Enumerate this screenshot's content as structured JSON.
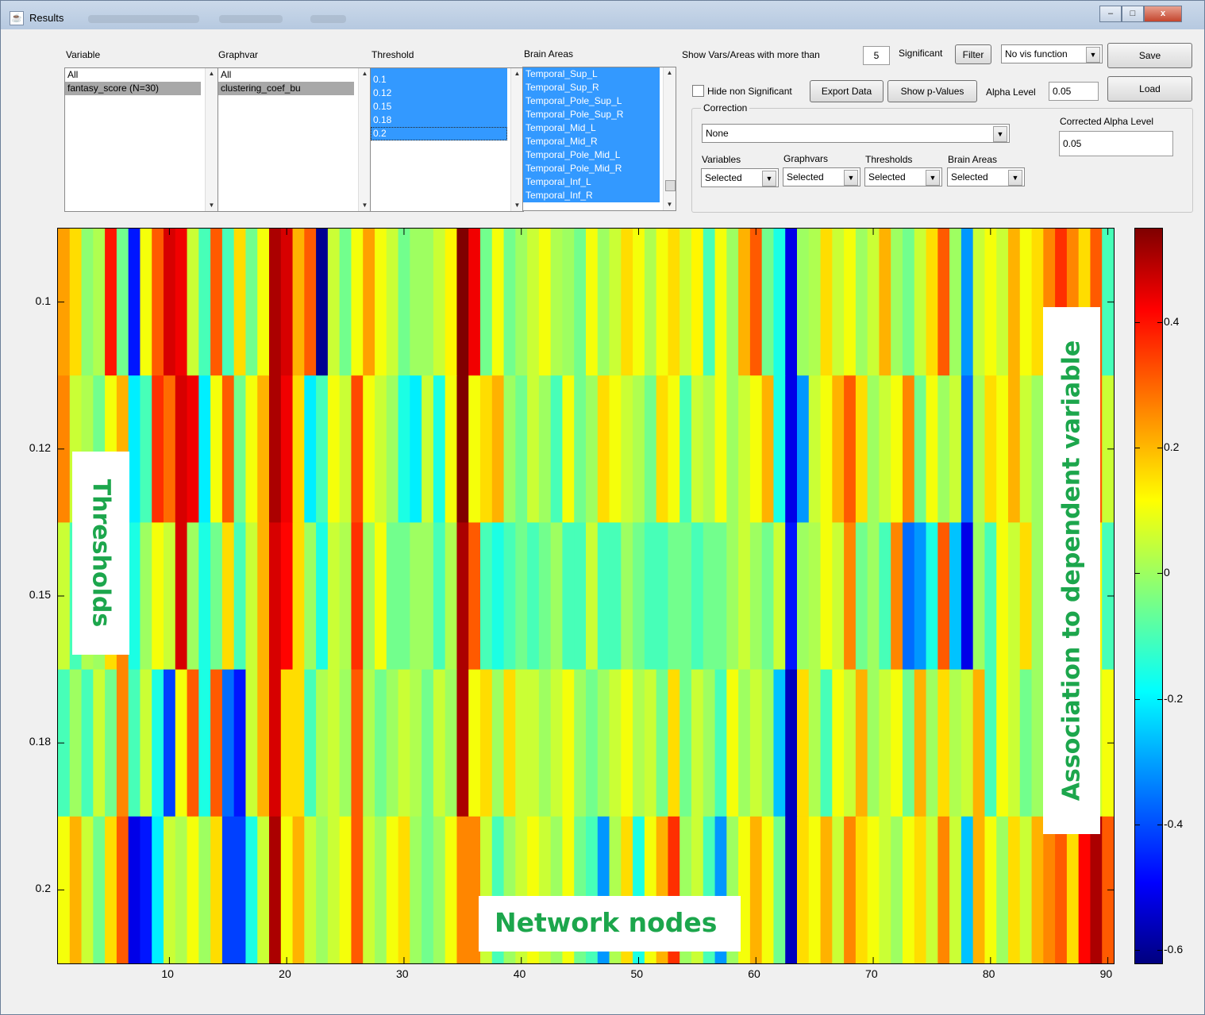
{
  "window": {
    "title": "Results",
    "controls": {
      "minimize": "–",
      "maximize": "□",
      "close": "x"
    }
  },
  "panels": {
    "variable": {
      "header": "Variable",
      "items": [
        "All",
        "fantasy_score (N=30)"
      ],
      "selected_index": 1
    },
    "graphvar": {
      "header": "Graphvar",
      "items": [
        "All",
        "clustering_coef_bu"
      ],
      "selected_index": 1
    },
    "threshold": {
      "header": "Threshold",
      "items": [
        "0.1",
        "0.12",
        "0.15",
        "0.18",
        "0.2"
      ]
    },
    "brain_areas": {
      "header": "Brain Areas",
      "items": [
        "Temporal_Sup_L",
        "Temporal_Sup_R",
        "Temporal_Pole_Sup_L",
        "Temporal_Pole_Sup_R",
        "Temporal_Mid_L",
        "Temporal_Mid_R",
        "Temporal_Pole_Mid_L",
        "Temporal_Pole_Mid_R",
        "Temporal_Inf_L",
        "Temporal_Inf_R"
      ]
    }
  },
  "controls": {
    "show_label": "Show Vars/Areas with more than",
    "show_count": "5",
    "significant_label": "Significant",
    "filter_button": "Filter",
    "vis_function": "No vis function",
    "save_button": "Save",
    "load_button": "Load",
    "hide_non_significant": "Hide non Significant",
    "hide_checked": false,
    "export_button": "Export Data",
    "pvalues_button": "Show p-Values",
    "alpha_label": "Alpha Level",
    "alpha_value": "0.05",
    "correction_label": "Correction",
    "correction_value": "None",
    "corrected_alpha_label": "Corrected Alpha Level",
    "corrected_alpha_value": "0.05",
    "sub_labels": [
      "Variables",
      "Graphvars",
      "Thresholds",
      "Brain Areas"
    ],
    "sub_values": [
      "Selected",
      "Selected",
      "Selected",
      "Selected"
    ]
  },
  "chart_data": {
    "type": "heatmap",
    "ylabel": "Thresholds",
    "xlabel": "Network nodes",
    "colorbar_label": "Association to dependent variable",
    "colormap": "jet",
    "y_ticks": [
      "0.1",
      "0.12",
      "0.15",
      "0.18",
      "0.2"
    ],
    "x_ticks": [
      10,
      20,
      30,
      40,
      50,
      60,
      70,
      80,
      90
    ],
    "x_range": [
      1,
      90
    ],
    "colorbar_ticks": [
      0.4,
      0.2,
      0,
      -0.2,
      -0.4,
      -0.6
    ],
    "colorbar_range": [
      -0.62,
      0.55
    ],
    "rows": [
      [
        0.22,
        0.15,
        -0.02,
        0.02,
        0.38,
        -0.05,
        -0.45,
        0.1,
        0.3,
        0.45,
        0.42,
        0.05,
        -0.1,
        0.3,
        -0.1,
        0.15,
        -0.05,
        0.1,
        0.5,
        0.45,
        0.2,
        0.3,
        -0.6,
        0.05,
        -0.05,
        0.1,
        0.22,
        0.1,
        0.05,
        -0.05,
        0.0,
        0.0,
        0.05,
        0.12,
        0.55,
        0.42,
        -0.05,
        0.1,
        -0.05,
        0.0,
        0.05,
        0.1,
        0.02,
        0.0,
        -0.05,
        0.1,
        0.0,
        0.05,
        0.15,
        0.1,
        0.02,
        0.1,
        0.15,
        0.05,
        0.12,
        -0.1,
        0.1,
        0.0,
        0.2,
        0.3,
        -0.05,
        -0.15,
        -0.5,
        0.0,
        0.02,
        0.15,
        0.05,
        0.1,
        0.0,
        0.05,
        0.2,
        0.0,
        -0.05,
        0.05,
        0.15,
        0.3,
        0.0,
        -0.3,
        0.05,
        0.1,
        0.05,
        0.2,
        0.1,
        0.15,
        0.25,
        0.35,
        0.25,
        0.15,
        0.3,
        -0.1
      ],
      [
        0.25,
        0.05,
        0.02,
        -0.05,
        0.1,
        0.2,
        -0.2,
        -0.1,
        0.35,
        0.28,
        0.45,
        0.42,
        -0.2,
        0.1,
        0.3,
        -0.05,
        0.1,
        0.2,
        0.5,
        0.42,
        0.15,
        -0.2,
        -0.1,
        0.1,
        0.05,
        0.32,
        0.1,
        0.05,
        0.0,
        -0.15,
        -0.2,
        0.05,
        -0.15,
        0.1,
        0.55,
        0.1,
        0.15,
        0.2,
        0.0,
        -0.05,
        0.05,
        0.0,
        -0.1,
        0.1,
        -0.05,
        0.0,
        0.15,
        0.1,
        0.05,
        0.02,
        -0.05,
        0.15,
        0.1,
        -0.1,
        0.05,
        0.02,
        0.1,
        0.0,
        0.05,
        0.1,
        0.2,
        -0.15,
        -0.5,
        -0.3,
        0.05,
        0.1,
        0.2,
        0.3,
        0.15,
        0.0,
        0.05,
        0.1,
        0.25,
        -0.05,
        0.1,
        0.0,
        0.05,
        -0.35,
        0.02,
        0.15,
        0.1,
        0.2,
        0.05,
        0.0,
        -0.3,
        0.15,
        0.0,
        0.25,
        0.3,
        0.05
      ],
      [
        0.05,
        -0.1,
        0.02,
        0.0,
        0.15,
        0.25,
        -0.15,
        0.0,
        0.1,
        0.05,
        0.45,
        0.0,
        -0.15,
        -0.05,
        0.15,
        -0.1,
        0.05,
        0.2,
        0.45,
        0.4,
        0.15,
        0.0,
        -0.15,
        0.05,
        0.02,
        0.35,
        0.0,
        0.1,
        -0.05,
        -0.05,
        0.0,
        0.0,
        -0.1,
        0.02,
        0.5,
        0.3,
        -0.1,
        -0.15,
        -0.1,
        -0.05,
        -0.1,
        -0.05,
        0.0,
        -0.1,
        -0.1,
        0.05,
        -0.1,
        -0.1,
        0.0,
        -0.05,
        -0.1,
        -0.1,
        -0.05,
        -0.05,
        -0.1,
        -0.05,
        -0.05,
        0.0,
        0.05,
        0.0,
        -0.05,
        0.05,
        -0.45,
        0.0,
        0.02,
        0.1,
        0.05,
        0.25,
        -0.05,
        0.0,
        -0.1,
        0.25,
        -0.35,
        -0.3,
        -0.15,
        0.3,
        -0.25,
        -0.5,
        0.0,
        -0.1,
        0.1,
        0.05,
        0.15,
        0.0,
        -0.3,
        0.0,
        0.0,
        0.05,
        0.12,
        -0.1
      ],
      [
        -0.1,
        0.0,
        -0.1,
        0.05,
        -0.05,
        0.25,
        -0.1,
        0.05,
        -0.15,
        -0.4,
        0.1,
        0.3,
        -0.15,
        0.3,
        -0.35,
        -0.45,
        0.05,
        0.2,
        0.45,
        0.15,
        0.15,
        -0.1,
        0.02,
        0.05,
        0.0,
        0.3,
        0.02,
        -0.05,
        0.0,
        0.05,
        0.02,
        -0.05,
        0.05,
        0.0,
        0.5,
        0.1,
        0.15,
        0.0,
        0.15,
        0.05,
        0.05,
        0.0,
        0.05,
        0.1,
        0.0,
        -0.05,
        0.0,
        0.05,
        0.1,
        0.02,
        0.05,
        -0.05,
        0.15,
        -0.05,
        0.05,
        0.0,
        -0.1,
        0.1,
        0.0,
        0.05,
        0.0,
        -0.25,
        -0.55,
        0.15,
        0.02,
        -0.1,
        0.1,
        0.05,
        0.2,
        0.0,
        0.05,
        0.1,
        -0.05,
        0.2,
        0.0,
        0.15,
        0.02,
        0.05,
        0.2,
        -0.1,
        0.1,
        0.05,
        -0.05,
        0.0,
        0.05,
        0.0,
        0.0,
        0.1,
        0.05,
        0.1
      ],
      [
        0.1,
        0.2,
        0.05,
        -0.05,
        0.15,
        0.3,
        -0.5,
        -0.45,
        -0.2,
        0.05,
        0.02,
        0.1,
        0.0,
        0.15,
        -0.4,
        -0.4,
        -0.15,
        0.05,
        0.5,
        0.1,
        0.2,
        0.05,
        0.0,
        0.05,
        0.1,
        0.3,
        0.05,
        0.0,
        0.1,
        0.15,
        0.0,
        -0.05,
        0.0,
        0.1,
        0.25,
        0.25,
        0.05,
        -0.1,
        0.0,
        0.05,
        0.1,
        0.05,
        0.0,
        0.1,
        -0.05,
        -0.1,
        -0.3,
        0.02,
        0.15,
        -0.15,
        0.1,
        0.2,
        0.35,
        0.0,
        0.05,
        -0.1,
        -0.3,
        0.0,
        0.1,
        0.2,
        0.1,
        -0.05,
        -0.55,
        0.15,
        0.1,
        0.2,
        0.05,
        0.25,
        0.15,
        0.1,
        0.05,
        0.0,
        0.1,
        0.15,
        0.05,
        0.25,
        0.05,
        -0.25,
        0.2,
        0.1,
        0.0,
        0.15,
        0.05,
        0.2,
        0.25,
        0.3,
        0.15,
        0.4,
        0.5,
        0.3
      ]
    ]
  }
}
